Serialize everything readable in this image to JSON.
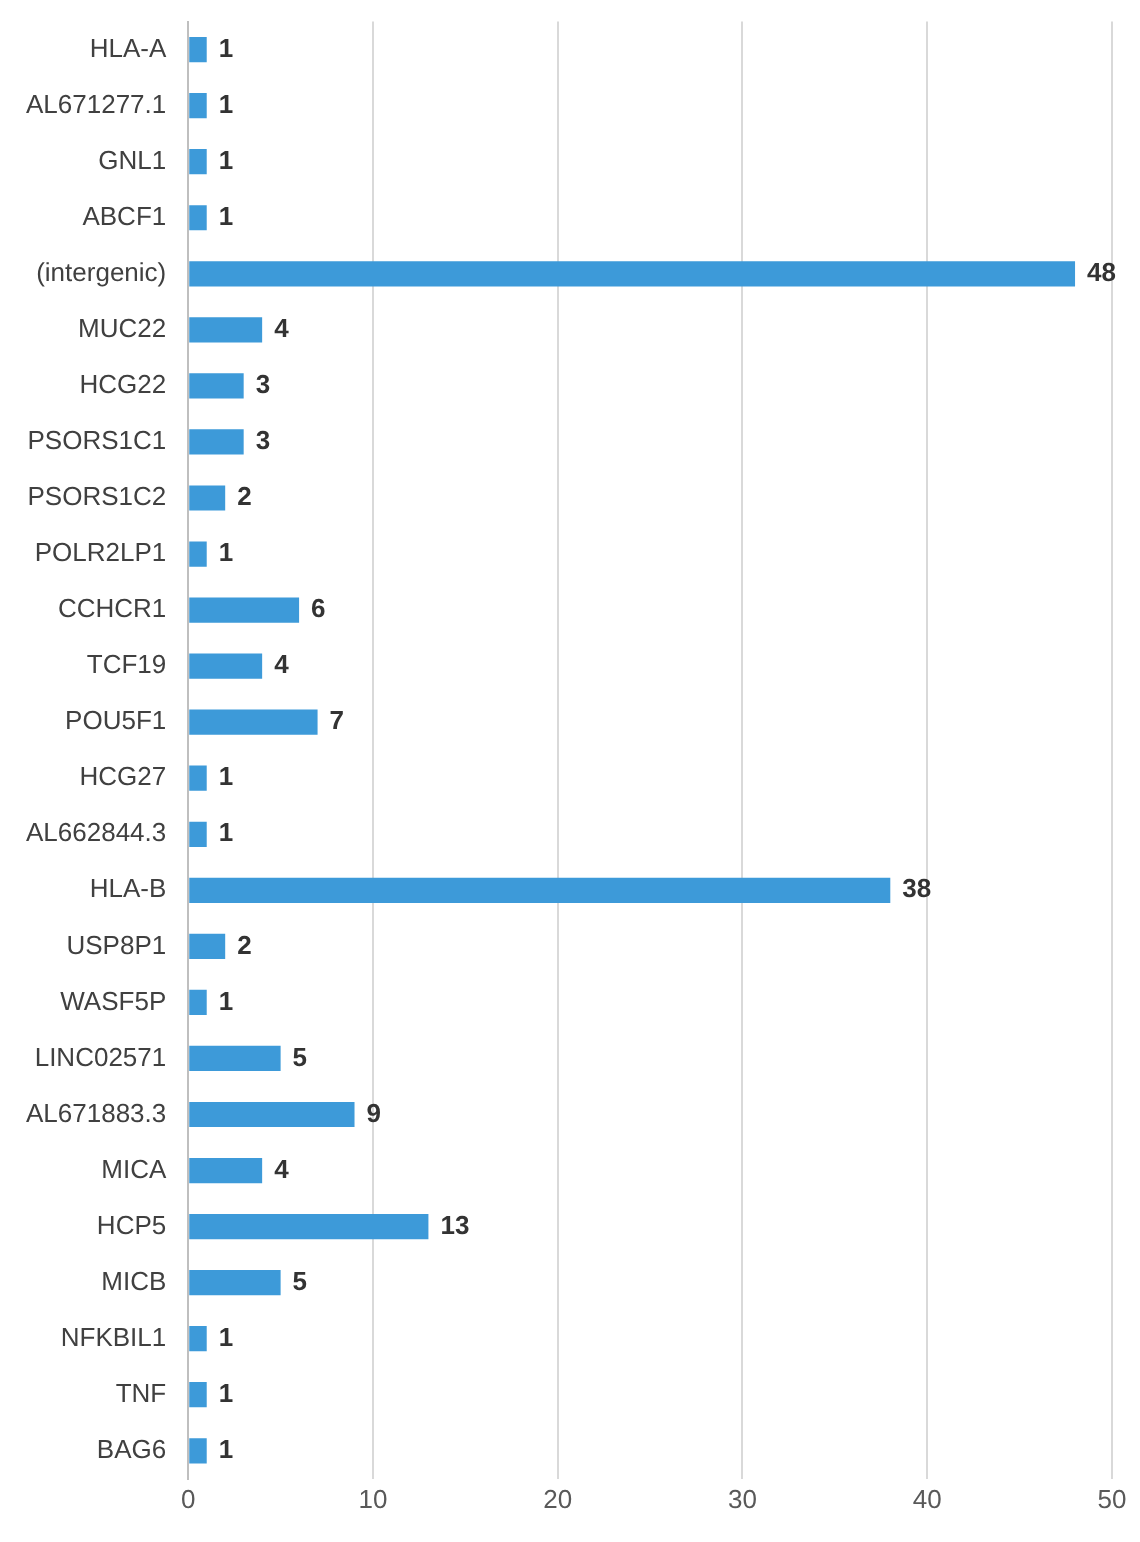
{
  "chart_data": {
    "type": "bar",
    "orientation": "horizontal",
    "categories": [
      "HLA-A",
      "AL671277.1",
      "GNL1",
      "ABCF1",
      "(intergenic)",
      "MUC22",
      "HCG22",
      "PSORS1C1",
      "PSORS1C2",
      "POLR2LP1",
      "CCHCR1",
      "TCF19",
      "POU5F1",
      "HCG27",
      "AL662844.3",
      "HLA-B",
      "USP8P1",
      "WASF5P",
      "LINC02571",
      "AL671883.3",
      "MICA",
      "HCP5",
      "MICB",
      "NFKBIL1",
      "TNF",
      "BAG6"
    ],
    "values": [
      1,
      1,
      1,
      1,
      48,
      4,
      3,
      3,
      2,
      1,
      6,
      4,
      7,
      1,
      1,
      38,
      2,
      1,
      5,
      9,
      4,
      13,
      5,
      1,
      1,
      1
    ],
    "color": "#3d9ad9",
    "xlim": [
      0,
      50
    ],
    "xticks": [
      0,
      10,
      20,
      30,
      40,
      50
    ],
    "grid": "x",
    "legend": false,
    "data_labels": true
  }
}
